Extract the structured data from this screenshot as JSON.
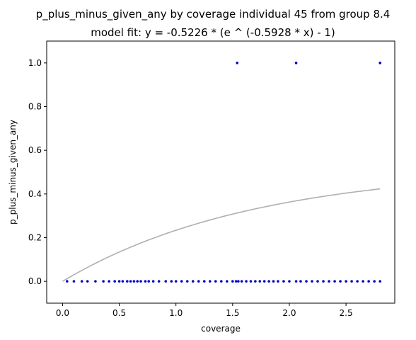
{
  "chart_data": {
    "type": "scatter",
    "title": "p_plus_minus_given_any by coverage individual 45 from group 8.4",
    "subtitle": "model fit: y = -0.5226 * (e ^ (-0.5928 * x) - 1)",
    "xlabel": "coverage",
    "ylabel": "p_plus_minus_given_any",
    "xlim": [
      -0.14,
      2.93
    ],
    "ylim": [
      -0.1,
      1.1
    ],
    "xticks": [
      {
        "value": 0.0,
        "label": "0.0"
      },
      {
        "value": 0.5,
        "label": "0.5"
      },
      {
        "value": 1.0,
        "label": "1.0"
      },
      {
        "value": 1.5,
        "label": "1.5"
      },
      {
        "value": 2.0,
        "label": "2.0"
      },
      {
        "value": 2.5,
        "label": "2.5"
      }
    ],
    "yticks": [
      {
        "value": 0.0,
        "label": "0.0"
      },
      {
        "value": 0.2,
        "label": "0.2"
      },
      {
        "value": 0.4,
        "label": "0.4"
      },
      {
        "value": 0.6,
        "label": "0.6"
      },
      {
        "value": 0.8,
        "label": "0.8"
      },
      {
        "value": 1.0,
        "label": "1.0"
      }
    ],
    "grid": false,
    "points_color": "#0000cc",
    "fit_color": "#b0b0b0",
    "fit": {
      "a": 0.5226,
      "b": 0.5928,
      "x_range": [
        0.0,
        2.8
      ]
    },
    "series": [
      {
        "x": [
          1.54,
          2.06,
          2.8,
          0.04,
          0.1,
          0.17,
          0.22,
          0.29,
          0.36,
          0.41,
          0.46,
          0.5,
          0.53,
          0.57,
          0.6,
          0.63,
          0.66,
          0.69,
          0.73,
          0.76,
          0.8,
          0.85,
          0.91,
          0.96,
          1.0,
          1.05,
          1.1,
          1.15,
          1.2,
          1.25,
          1.3,
          1.35,
          1.4,
          1.45,
          1.5,
          1.53,
          1.55,
          1.58,
          1.62,
          1.66,
          1.7,
          1.74,
          1.78,
          1.82,
          1.86,
          1.9,
          1.95,
          2.0,
          2.06,
          2.1,
          2.15,
          2.2,
          2.25,
          2.3,
          2.35,
          2.4,
          2.45,
          2.5,
          2.55,
          2.6,
          2.65,
          2.7,
          2.75,
          2.8
        ],
        "y": [
          1,
          1,
          1,
          0,
          0,
          0,
          0,
          0,
          0,
          0,
          0,
          0,
          0,
          0,
          0,
          0,
          0,
          0,
          0,
          0,
          0,
          0,
          0,
          0,
          0,
          0,
          0,
          0,
          0,
          0,
          0,
          0,
          0,
          0,
          0,
          0,
          0,
          0,
          0,
          0,
          0,
          0,
          0,
          0,
          0,
          0,
          0,
          0,
          0,
          0,
          0,
          0,
          0,
          0,
          0,
          0,
          0,
          0,
          0,
          0,
          0,
          0,
          0,
          0
        ]
      }
    ]
  }
}
